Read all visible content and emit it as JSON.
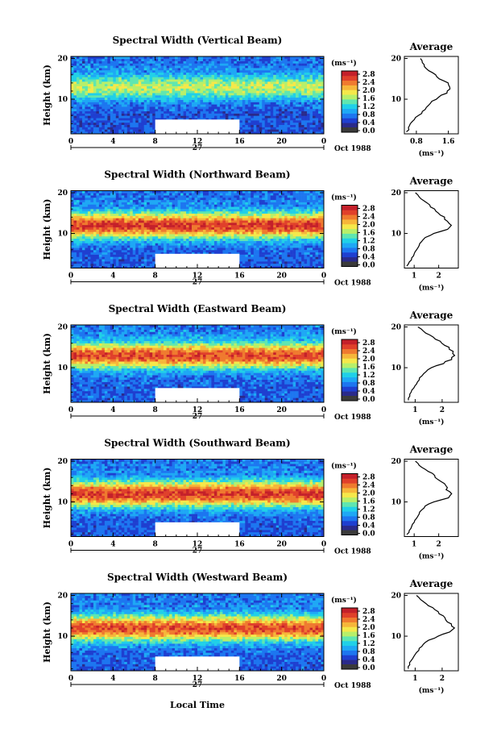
{
  "figure": {
    "xlabel": "Local Time",
    "date_label": "Oct 1988",
    "day_label": "27",
    "ylabel": "Height (km)",
    "units": "(ms⁻¹)",
    "profile_title": "Average",
    "profile_xlabel": "(ms⁻¹)"
  },
  "colormap": [
    "#2a2a8a",
    "#1f3fd0",
    "#1d76f0",
    "#1ea8f5",
    "#20d0e8",
    "#5fe6b0",
    "#b7ef6a",
    "#f5e84a",
    "#f6b63a",
    "#ef7a2f",
    "#e0402b",
    "#c4202a"
  ],
  "chart_data": [
    {
      "type": "heatmap",
      "title": "Spectral Width (Vertical Beam)",
      "x_ticks": [
        "0",
        "4",
        "8",
        "12",
        "16",
        "20",
        "0"
      ],
      "y_ticks": [
        "20",
        "10"
      ],
      "xlim": [
        0,
        24
      ],
      "ylim": [
        1.5,
        20.5
      ],
      "colorbar_ticks": [
        "2.8",
        "2.4",
        "2.0",
        "1.6",
        "1.2",
        "0.8",
        "0.4",
        "0.0"
      ],
      "colorbar_range": [
        0,
        3.0
      ],
      "data_gap": {
        "x": [
          8,
          16
        ],
        "y": [
          1.5,
          5
        ]
      },
      "peak_height_km": 13,
      "peak_width": 1.7,
      "base_width": 0.45,
      "profile": {
        "x_ticks": [
          "0.8",
          "1.6"
        ],
        "xlim": [
          0.5,
          1.85
        ],
        "points": [
          [
            2,
            0.55
          ],
          [
            3,
            0.6
          ],
          [
            4,
            0.65
          ],
          [
            5,
            0.75
          ],
          [
            6,
            0.85
          ],
          [
            7,
            0.95
          ],
          [
            8,
            1.05
          ],
          [
            9,
            1.15
          ],
          [
            10,
            1.3
          ],
          [
            11,
            1.45
          ],
          [
            12,
            1.6
          ],
          [
            13,
            1.65
          ],
          [
            14,
            1.55
          ],
          [
            15,
            1.4
          ],
          [
            16,
            1.25
          ],
          [
            17,
            1.1
          ],
          [
            18,
            1.0
          ],
          [
            19,
            0.95
          ],
          [
            20,
            0.9
          ]
        ]
      }
    },
    {
      "type": "heatmap",
      "title": "Spectral Width (Northward Beam)",
      "x_ticks": [
        "0",
        "4",
        "8",
        "12",
        "16",
        "20",
        "0"
      ],
      "y_ticks": [
        "20",
        "10"
      ],
      "xlim": [
        0,
        24
      ],
      "ylim": [
        1.5,
        20.5
      ],
      "colorbar_ticks": [
        "2.8",
        "2.4",
        "2.0",
        "1.6",
        "1.2",
        "0.8",
        "0.4",
        "0.0"
      ],
      "colorbar_range": [
        0,
        3.0
      ],
      "data_gap": {
        "x": [
          8,
          16
        ],
        "y": [
          1.5,
          5
        ]
      },
      "peak_height_km": 12,
      "peak_width": 2.7,
      "base_width": 0.5,
      "profile": {
        "x_ticks": [
          "1",
          "2"
        ],
        "xlim": [
          0.6,
          2.8
        ],
        "points": [
          [
            2,
            0.7
          ],
          [
            3,
            0.8
          ],
          [
            4,
            0.9
          ],
          [
            5,
            1.0
          ],
          [
            6,
            1.1
          ],
          [
            7,
            1.2
          ],
          [
            8,
            1.3
          ],
          [
            9,
            1.45
          ],
          [
            10,
            1.8
          ],
          [
            11,
            2.4
          ],
          [
            12,
            2.5
          ],
          [
            13,
            2.35
          ],
          [
            14,
            2.2
          ],
          [
            15,
            2.0
          ],
          [
            16,
            1.8
          ],
          [
            17,
            1.6
          ],
          [
            18,
            1.4
          ],
          [
            19,
            1.2
          ],
          [
            20,
            1.05
          ]
        ]
      }
    },
    {
      "type": "heatmap",
      "title": "Spectral Width (Eastward Beam)",
      "x_ticks": [
        "0",
        "4",
        "8",
        "12",
        "16",
        "20",
        "0"
      ],
      "y_ticks": [
        "20",
        "10"
      ],
      "xlim": [
        0,
        24
      ],
      "ylim": [
        1.5,
        20.5
      ],
      "colorbar_ticks": [
        "2.8",
        "2.4",
        "2.0",
        "1.6",
        "1.2",
        "0.8",
        "0.4",
        "0.0"
      ],
      "colorbar_range": [
        0,
        3.0
      ],
      "data_gap": {
        "x": [
          8,
          16
        ],
        "y": [
          1.5,
          5
        ]
      },
      "peak_height_km": 13,
      "peak_width": 2.6,
      "base_width": 0.5,
      "profile": {
        "x_ticks": [
          "1",
          "2"
        ],
        "xlim": [
          0.6,
          2.6
        ],
        "points": [
          [
            2,
            0.75
          ],
          [
            3,
            0.8
          ],
          [
            4,
            0.85
          ],
          [
            5,
            0.95
          ],
          [
            6,
            1.05
          ],
          [
            7,
            1.15
          ],
          [
            8,
            1.25
          ],
          [
            9,
            1.4
          ],
          [
            10,
            1.6
          ],
          [
            11,
            2.0
          ],
          [
            12,
            2.3
          ],
          [
            13,
            2.45
          ],
          [
            14,
            2.4
          ],
          [
            15,
            2.2
          ],
          [
            16,
            2.0
          ],
          [
            17,
            1.8
          ],
          [
            18,
            1.55
          ],
          [
            19,
            1.3
          ],
          [
            20,
            1.1
          ]
        ]
      }
    },
    {
      "type": "heatmap",
      "title": "Spectral Width (Southward Beam)",
      "x_ticks": [
        "0",
        "4",
        "8",
        "12",
        "16",
        "20",
        "0"
      ],
      "y_ticks": [
        "20",
        "10"
      ],
      "xlim": [
        0,
        24
      ],
      "ylim": [
        1.5,
        20.5
      ],
      "colorbar_ticks": [
        "2.8",
        "2.4",
        "2.0",
        "1.6",
        "1.2",
        "0.8",
        "0.4",
        "0.0"
      ],
      "colorbar_range": [
        0,
        3.0
      ],
      "data_gap": {
        "x": [
          8,
          16
        ],
        "y": [
          1.5,
          5
        ]
      },
      "peak_height_km": 12,
      "peak_width": 2.7,
      "base_width": 0.5,
      "profile": {
        "x_ticks": [
          "1",
          "2"
        ],
        "xlim": [
          0.6,
          2.8
        ],
        "points": [
          [
            2,
            0.7
          ],
          [
            3,
            0.8
          ],
          [
            4,
            0.9
          ],
          [
            5,
            1.0
          ],
          [
            6,
            1.1
          ],
          [
            7,
            1.2
          ],
          [
            8,
            1.3
          ],
          [
            9,
            1.45
          ],
          [
            10,
            1.8
          ],
          [
            11,
            2.4
          ],
          [
            12,
            2.5
          ],
          [
            13,
            2.35
          ],
          [
            14,
            2.3
          ],
          [
            15,
            2.1
          ],
          [
            16,
            1.9
          ],
          [
            17,
            1.7
          ],
          [
            18,
            1.45
          ],
          [
            19,
            1.2
          ],
          [
            20,
            1.05
          ]
        ]
      }
    },
    {
      "type": "heatmap",
      "title": "Spectral Width (Westward Beam)",
      "x_ticks": [
        "0",
        "4",
        "8",
        "12",
        "16",
        "20",
        "0"
      ],
      "y_ticks": [
        "20",
        "10"
      ],
      "xlim": [
        0,
        24
      ],
      "ylim": [
        1.5,
        20.5
      ],
      "colorbar_ticks": [
        "2.8",
        "2.4",
        "2.0",
        "1.6",
        "1.2",
        "0.8",
        "0.4",
        "0.0"
      ],
      "colorbar_range": [
        0,
        3.0
      ],
      "data_gap": {
        "x": [
          8,
          16
        ],
        "y": [
          1.5,
          5
        ]
      },
      "peak_height_km": 12,
      "peak_width": 2.6,
      "base_width": 0.5,
      "profile": {
        "x_ticks": [
          "1",
          "2"
        ],
        "xlim": [
          0.6,
          2.6
        ],
        "points": [
          [
            2,
            0.75
          ],
          [
            3,
            0.8
          ],
          [
            4,
            0.85
          ],
          [
            5,
            0.95
          ],
          [
            6,
            1.05
          ],
          [
            7,
            1.15
          ],
          [
            8,
            1.3
          ],
          [
            9,
            1.5
          ],
          [
            10,
            1.85
          ],
          [
            11,
            2.3
          ],
          [
            12,
            2.4
          ],
          [
            13,
            2.3
          ],
          [
            14,
            2.15
          ],
          [
            15,
            2.0
          ],
          [
            16,
            1.8
          ],
          [
            17,
            1.6
          ],
          [
            18,
            1.4
          ],
          [
            19,
            1.2
          ],
          [
            20,
            1.05
          ]
        ]
      }
    }
  ]
}
